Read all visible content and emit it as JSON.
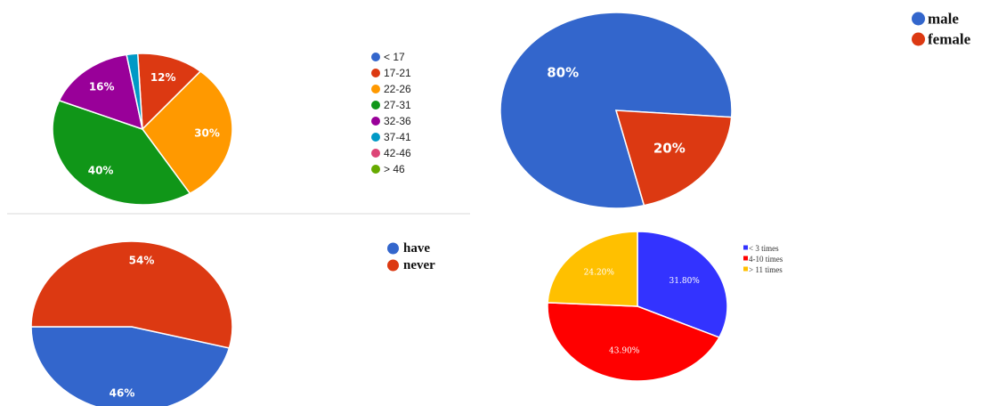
{
  "chart_data": [
    {
      "type": "pie",
      "categories": [
        "< 17",
        "17-21",
        "22-26",
        "27-31",
        "32-36",
        "37-41",
        "42-46",
        "> 46"
      ],
      "values": [
        0,
        12,
        30,
        40,
        16,
        2,
        0,
        0
      ],
      "data_labels": [
        "",
        "12%",
        "30%",
        "40%",
        "16%",
        "",
        "",
        ""
      ],
      "colors": [
        "#3366cc",
        "#dc3912",
        "#ff9900",
        "#109618",
        "#990099",
        "#0099c6",
        "#dd4477",
        "#66aa00"
      ],
      "legend_position": "right"
    },
    {
      "type": "pie",
      "categories": [
        "male",
        "female"
      ],
      "values": [
        80,
        20
      ],
      "data_labels": [
        "80%",
        "20%"
      ],
      "colors": [
        "#3366cc",
        "#dc3912"
      ],
      "legend_position": "top-right"
    },
    {
      "type": "pie",
      "categories": [
        "have",
        "never"
      ],
      "values": [
        46,
        54
      ],
      "data_labels": [
        "46%",
        "54%"
      ],
      "colors": [
        "#3366cc",
        "#dc3912"
      ],
      "legend_position": "top-right"
    },
    {
      "type": "pie",
      "categories": [
        "< 3 times",
        "4-10 times",
        "> 11 times"
      ],
      "values": [
        31.8,
        43.9,
        24.2
      ],
      "data_labels": [
        "31.80%",
        "43.90%",
        "24.20%"
      ],
      "colors": [
        "#3333ff",
        "#ff0000",
        "#ffc000"
      ],
      "legend_position": "top-right"
    }
  ]
}
